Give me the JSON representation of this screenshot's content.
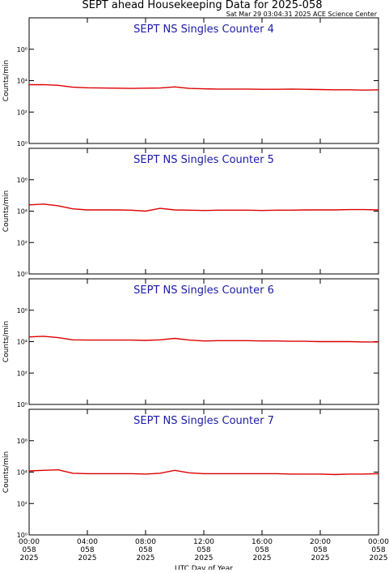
{
  "title": "SEPT ahead Housekeeping Data for 2025-058",
  "subtitle": "Sat Mar 29 03:04:31 2025 ACE Science Center",
  "chart_data": [
    {
      "type": "line",
      "title": "SEPT NS Singles Counter 4",
      "ylabel": "Counts/min",
      "log_y": true,
      "xlim": [
        0,
        24
      ],
      "xticks": [
        0,
        4,
        8,
        12,
        16,
        20,
        24
      ],
      "ylim": [
        1,
        100000000
      ],
      "yticks": [
        {
          "value": 1,
          "label": "10⁰"
        },
        {
          "value": 100,
          "label": "10²"
        },
        {
          "value": 10000,
          "label": "10⁴"
        },
        {
          "value": 1000000,
          "label": "10⁶"
        }
      ],
      "series": [
        {
          "name": "Counter 4",
          "color": "#dd0000",
          "x": [
            0,
            1,
            2,
            3,
            4,
            5,
            6,
            7,
            8,
            9,
            10,
            11,
            12,
            13,
            14,
            15,
            16,
            17,
            18,
            19,
            20,
            21,
            22,
            23,
            24
          ],
          "values": [
            5500,
            5600,
            5000,
            3800,
            3500,
            3400,
            3300,
            3200,
            3300,
            3400,
            4000,
            3200,
            3000,
            2900,
            2900,
            2900,
            2800,
            2800,
            2900,
            2800,
            2700,
            2600,
            2600,
            2500,
            2600
          ]
        }
      ]
    },
    {
      "type": "line",
      "title": "SEPT NS Singles Counter 5",
      "ylabel": "Counts/min",
      "log_y": true,
      "xlim": [
        0,
        24
      ],
      "xticks": [
        0,
        4,
        8,
        12,
        16,
        20,
        24
      ],
      "ylim": [
        1,
        100000000
      ],
      "yticks": [
        {
          "value": 1,
          "label": "10⁰"
        },
        {
          "value": 100,
          "label": "10²"
        },
        {
          "value": 10000,
          "label": "10⁴"
        },
        {
          "value": 1000000,
          "label": "10⁶"
        }
      ],
      "series": [
        {
          "name": "Counter 5",
          "color": "#dd0000",
          "x": [
            0,
            1,
            2,
            3,
            4,
            5,
            6,
            7,
            8,
            9,
            10,
            11,
            12,
            13,
            14,
            15,
            16,
            17,
            18,
            19,
            20,
            21,
            22,
            23,
            24
          ],
          "values": [
            25000,
            28000,
            22000,
            14000,
            12000,
            12000,
            12000,
            11500,
            10000,
            15000,
            12000,
            11500,
            11000,
            11500,
            11500,
            11500,
            11000,
            11500,
            11500,
            12000,
            12000,
            12000,
            12500,
            12500,
            12000
          ]
        }
      ]
    },
    {
      "type": "line",
      "title": "SEPT NS Singles Counter 6",
      "ylabel": "Counts/min",
      "log_y": true,
      "xlim": [
        0,
        24
      ],
      "xticks": [
        0,
        4,
        8,
        12,
        16,
        20,
        24
      ],
      "ylim": [
        1,
        100000000
      ],
      "yticks": [
        {
          "value": 1,
          "label": "10⁰"
        },
        {
          "value": 100,
          "label": "10²"
        },
        {
          "value": 10000,
          "label": "10⁴"
        },
        {
          "value": 1000000,
          "label": "10⁶"
        }
      ],
      "series": [
        {
          "name": "Counter 6",
          "color": "#dd0000",
          "x": [
            0,
            1,
            2,
            3,
            4,
            5,
            6,
            7,
            8,
            9,
            10,
            11,
            12,
            13,
            14,
            15,
            16,
            17,
            18,
            19,
            20,
            21,
            22,
            23,
            24
          ],
          "values": [
            20000,
            22000,
            18000,
            13000,
            12500,
            12500,
            12500,
            12500,
            12000,
            13000,
            16000,
            12500,
            11000,
            11500,
            11500,
            11500,
            11000,
            11000,
            10500,
            10500,
            10000,
            10000,
            10000,
            9500,
            9500
          ]
        }
      ]
    },
    {
      "type": "line",
      "title": "SEPT NS Singles Counter 7",
      "ylabel": "Counts/min",
      "log_y": true,
      "xlim": [
        0,
        24
      ],
      "xticks": [
        {
          "value": 0,
          "label": "00:00"
        },
        {
          "value": 4,
          "label": "04:00"
        },
        {
          "value": 8,
          "label": "08:00"
        },
        {
          "value": 12,
          "label": "12:00"
        },
        {
          "value": 16,
          "label": "16:00"
        },
        {
          "value": 20,
          "label": "20:00"
        },
        {
          "value": 24,
          "label": "00:00"
        }
      ],
      "xtick_days": [
        "058",
        "058",
        "058",
        "058",
        "058",
        "058",
        "058"
      ],
      "xtick_years": [
        "2025",
        "2025",
        "2025",
        "2025",
        "2025",
        "2025",
        "2025"
      ],
      "xlabel": "UTC Day of Year",
      "ylim": [
        1,
        100000000
      ],
      "yticks": [
        {
          "value": 1,
          "label": "10⁰"
        },
        {
          "value": 100,
          "label": "10²"
        },
        {
          "value": 10000,
          "label": "10⁴"
        },
        {
          "value": 1000000,
          "label": "10⁶"
        }
      ],
      "series": [
        {
          "name": "Counter 7",
          "color": "#dd0000",
          "x": [
            0,
            1,
            2,
            3,
            4,
            5,
            6,
            7,
            8,
            9,
            10,
            11,
            12,
            13,
            14,
            15,
            16,
            17,
            18,
            19,
            20,
            21,
            22,
            23,
            24
          ],
          "values": [
            12000,
            13000,
            14000,
            8500,
            8000,
            8000,
            8000,
            8000,
            7500,
            8500,
            13000,
            9000,
            8000,
            8000,
            8000,
            8000,
            8000,
            8000,
            7500,
            7500,
            7500,
            7000,
            7500,
            7500,
            8000
          ]
        }
      ]
    }
  ]
}
